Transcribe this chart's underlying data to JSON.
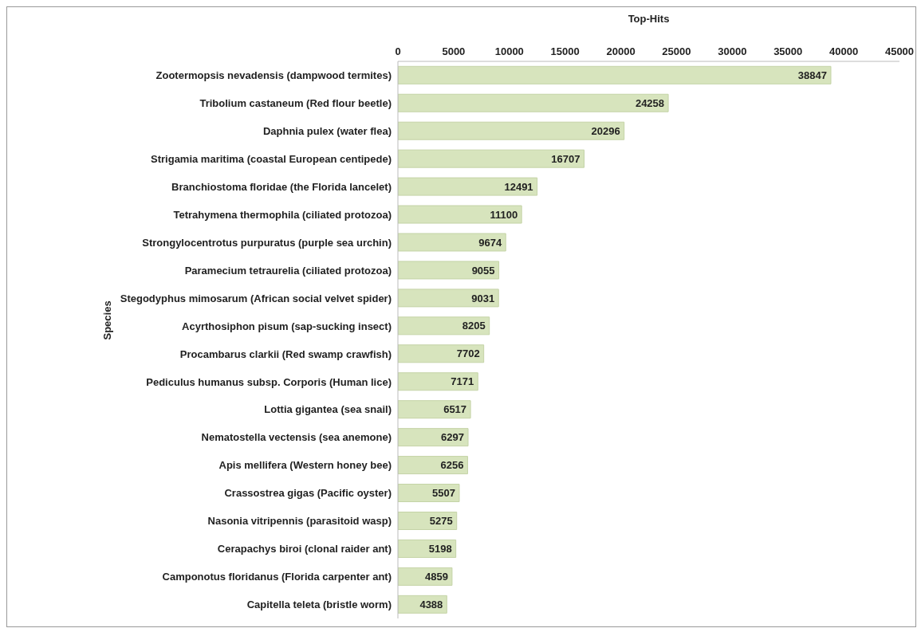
{
  "chart_data": {
    "type": "bar",
    "orientation": "horizontal",
    "xlabel": "Top-Hits",
    "ylabel": "Species",
    "categories": [
      "Zootermopsis nevadensis (dampwood termites)",
      "Tribolium castaneum (Red flour beetle)",
      "Daphnia pulex (water flea)",
      "Strigamia maritima (coastal European centipede)",
      "Branchiostoma floridae (the Florida lancelet)",
      "Tetrahymena thermophila (ciliated protozoa)",
      "Strongylocentrotus purpuratus (purple sea urchin)",
      "Paramecium tetraurelia (ciliated protozoa)",
      "Stegodyphus mimosarum (African social velvet spider)",
      "Acyrthosiphon pisum (sap-sucking insect)",
      "Procambarus clarkii (Red swamp crawfish)",
      "Pediculus humanus subsp. Corporis (Human lice)",
      "Lottia gigantea (sea snail)",
      "Nematostella vectensis (sea anemone)",
      "Apis mellifera (Western honey bee)",
      "Crassostrea gigas (Pacific oyster)",
      "Nasonia vitripennis (parasitoid wasp)",
      "Cerapachys biroi (clonal raider ant)",
      "Camponotus floridanus (Florida carpenter ant)",
      "Capitella teleta (bristle worm)"
    ],
    "values": [
      38847,
      24258,
      20296,
      16707,
      12491,
      11100,
      9674,
      9055,
      9031,
      8205,
      7702,
      7171,
      6517,
      6297,
      6256,
      5507,
      5275,
      5198,
      4859,
      4388
    ],
    "color": "#d7e4bd",
    "data_labels": true,
    "grid": false,
    "legend": false,
    "xlim": [
      0,
      45000
    ],
    "xticks": [
      0,
      5000,
      10000,
      15000,
      20000,
      25000,
      30000,
      35000,
      40000,
      45000
    ]
  }
}
